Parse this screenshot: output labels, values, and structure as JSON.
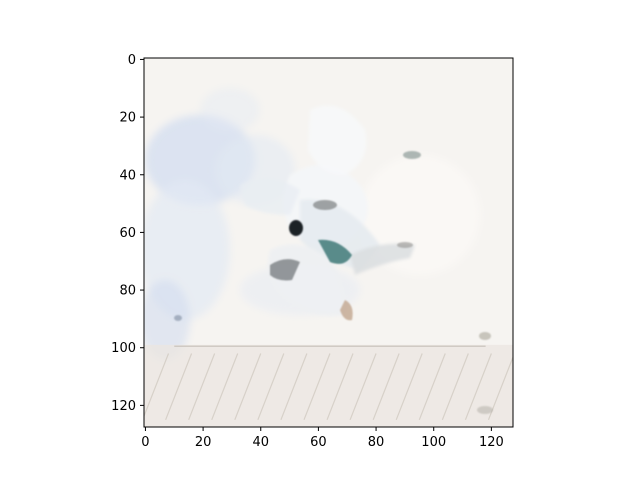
{
  "chart_data": {
    "type": "heatmap",
    "title": "",
    "xlabel": "",
    "ylabel": "",
    "image_size": [
      128,
      128
    ],
    "xlim": [
      -0.5,
      127.5
    ],
    "ylim": [
      127.5,
      -0.5
    ],
    "y_inverted": true,
    "grid": false,
    "legend": "none",
    "x_ticks": [
      0,
      20,
      40,
      60,
      80,
      100,
      120
    ],
    "y_ticks": [
      0,
      20,
      40,
      60,
      80,
      100,
      120
    ],
    "x_tick_labels": [
      "0",
      "20",
      "40",
      "60",
      "80",
      "100",
      "120"
    ],
    "y_tick_labels": [
      "0",
      "20",
      "40",
      "60",
      "80",
      "100",
      "120"
    ],
    "image_colors": {
      "background": "#f6f4f1",
      "haze_blue": "#d3def0",
      "pale_blue": "#e2e9f3",
      "floor": "#ebe6e0",
      "stripe": "#cfc8bf",
      "dark": "#1c2228",
      "teal": "#3f7a78",
      "shadow": "#8b8d8e",
      "tan": "#c2a68e"
    }
  }
}
